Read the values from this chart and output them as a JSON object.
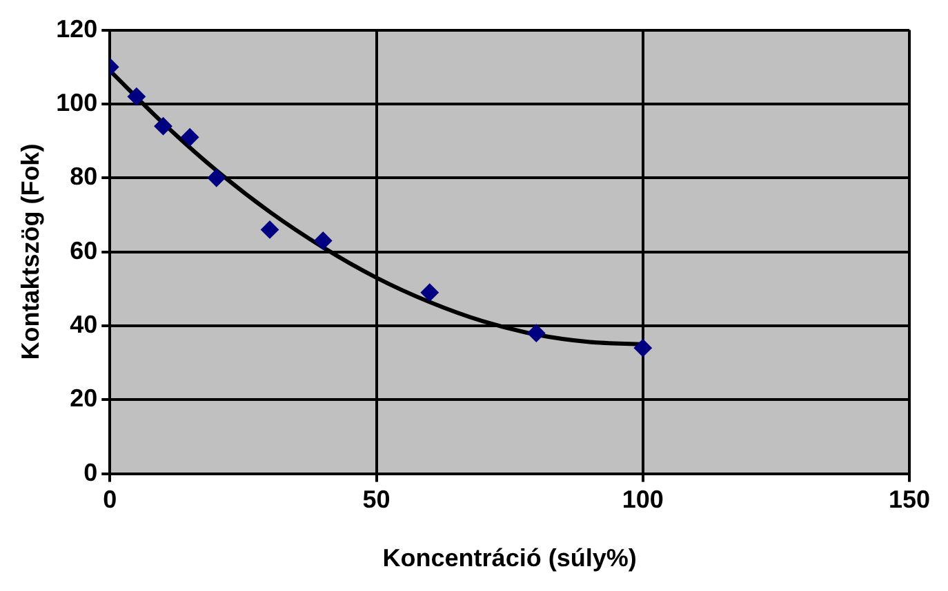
{
  "chart_data": {
    "type": "scatter",
    "xlabel": "Koncentráció (súly%)",
    "ylabel": "Kontaktszög (Fok)",
    "series": [
      {
        "type": "scatter",
        "color": "#000080",
        "marker": "diamond",
        "x": [
          0,
          5,
          10,
          15,
          20,
          30,
          40,
          60,
          80,
          100
        ],
        "values": [
          110,
          102,
          94,
          91,
          80,
          66,
          63,
          49,
          38,
          34
        ]
      },
      {
        "type": "line",
        "color": "#000000",
        "marker": "none",
        "line_style": "solid",
        "x": [
          0,
          10,
          20,
          30,
          40,
          50,
          60,
          70,
          80,
          90,
          100
        ],
        "values": [
          109,
          94.8,
          82,
          70.8,
          61.2,
          53,
          46.4,
          41.2,
          37.6,
          35.6,
          35
        ]
      }
    ],
    "xlim": [
      0,
      150
    ],
    "xticks": [
      0,
      50,
      100,
      150
    ],
    "ylim": [
      0,
      120
    ],
    "yticks": [
      0,
      20,
      40,
      60,
      80,
      100,
      120
    ],
    "grid": true,
    "legend": false
  }
}
